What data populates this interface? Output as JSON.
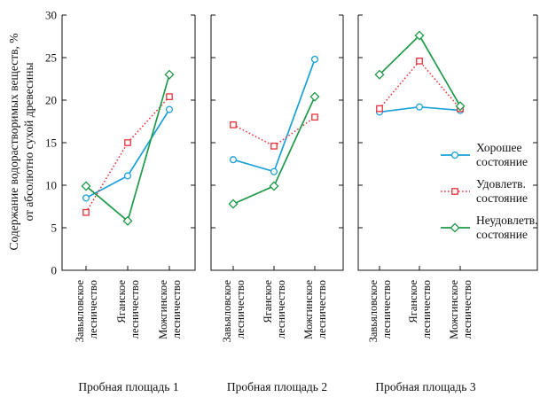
{
  "chart_data": {
    "type": "line",
    "ylabel": [
      "Содержание водорастворимых веществ, %",
      "от абсолютно сухой древесины"
    ],
    "ylim": [
      0,
      30
    ],
    "yticks": [
      0,
      5,
      10,
      15,
      20,
      25,
      30
    ],
    "categories": [
      [
        "Завьяловское",
        "лесничество"
      ],
      [
        "Яганское",
        "лесничество"
      ],
      [
        "Можгинское",
        "лесничество"
      ]
    ],
    "legend_position": "right",
    "panels": [
      {
        "title": "Пробная площадь 1",
        "series": [
          {
            "key": "good",
            "values": [
              8.5,
              11.1,
              18.9
            ]
          },
          {
            "key": "satisf",
            "values": [
              6.8,
              15.0,
              20.4
            ]
          },
          {
            "key": "unsatisf",
            "values": [
              9.9,
              5.8,
              23.0
            ]
          }
        ]
      },
      {
        "title": "Пробная площадь 2",
        "series": [
          {
            "key": "good",
            "values": [
              13.0,
              11.6,
              24.8
            ]
          },
          {
            "key": "satisf",
            "values": [
              17.1,
              14.6,
              18.0
            ]
          },
          {
            "key": "unsatisf",
            "values": [
              7.8,
              9.9,
              20.4
            ]
          }
        ]
      },
      {
        "title": "Пробная площадь 3",
        "series": [
          {
            "key": "good",
            "values": [
              18.6,
              19.2,
              18.8
            ]
          },
          {
            "key": "satisf",
            "values": [
              19.0,
              24.6,
              19.0
            ]
          },
          {
            "key": "unsatisf",
            "values": [
              23.0,
              27.6,
              19.3
            ]
          }
        ]
      }
    ],
    "series_styles": [
      {
        "key": "good",
        "label": [
          "Хорошее",
          "состояние"
        ],
        "color": "#1aa0d8",
        "marker": "circle",
        "dash": "none"
      },
      {
        "key": "satisf",
        "label": [
          "Удовлетв.",
          "состояние"
        ],
        "color": "#e8303a",
        "marker": "square",
        "dash": "dotted"
      },
      {
        "key": "unsatisf",
        "label": [
          "Неудовлетв.",
          "состояние"
        ],
        "color": "#1e9a48",
        "marker": "diamond",
        "dash": "none"
      }
    ]
  }
}
